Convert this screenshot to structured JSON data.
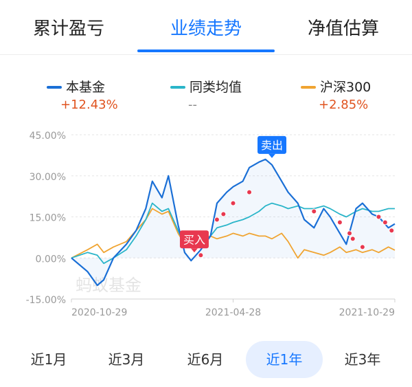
{
  "tabs": [
    {
      "label": "累计盈亏",
      "active": false
    },
    {
      "label": "业绩走势",
      "active": true
    },
    {
      "label": "净值估算",
      "active": false
    }
  ],
  "colors": {
    "accent": "#1677ff",
    "fund": "#1a6fd6",
    "peer": "#2ab5c9",
    "hs300": "#f0a431",
    "positive": "#e0531f",
    "marker_buy": "#e8384f",
    "marker_sell": "#1677ff",
    "dot": "#e8384f"
  },
  "legend": [
    {
      "name": "本基金",
      "value": "+12.43%"
    },
    {
      "name": "同类均值",
      "value": "--"
    },
    {
      "name": "沪深300",
      "value": "+2.85%"
    }
  ],
  "watermark": "蚂蚁基金",
  "ranges": [
    {
      "label": "近1月",
      "active": false
    },
    {
      "label": "近3月",
      "active": false
    },
    {
      "label": "近6月",
      "active": false
    },
    {
      "label": "近1年",
      "active": true
    },
    {
      "label": "近3年",
      "active": false
    }
  ],
  "chart_data": {
    "type": "line",
    "title": "",
    "xlabel": "",
    "ylabel": "",
    "ylim": [
      -15,
      45
    ],
    "yticks": [
      "45.00%",
      "30.00%",
      "15.00%",
      "0.00%",
      "-15.00%"
    ],
    "ytick_values": [
      45,
      30,
      15,
      0,
      -15
    ],
    "xticks": [
      {
        "label": "2020-10-29",
        "t": 0
      },
      {
        "label": "2021-04-28",
        "t": 0.5
      },
      {
        "label": "2021-10-29",
        "t": 1
      }
    ],
    "grid": true,
    "x": [
      0,
      0.05,
      0.08,
      0.1,
      0.13,
      0.17,
      0.2,
      0.23,
      0.25,
      0.28,
      0.3,
      0.33,
      0.35,
      0.37,
      0.4,
      0.43,
      0.45,
      0.48,
      0.5,
      0.53,
      0.55,
      0.58,
      0.6,
      0.62,
      0.65,
      0.67,
      0.7,
      0.72,
      0.75,
      0.78,
      0.8,
      0.83,
      0.85,
      0.88,
      0.9,
      0.93,
      0.95,
      0.98,
      1.0
    ],
    "series": [
      {
        "name": "本基金",
        "values": [
          0,
          -5,
          -10,
          -8,
          0,
          5,
          10,
          18,
          28,
          22,
          30,
          12,
          2,
          -1,
          3,
          8,
          20,
          24,
          26,
          28,
          33,
          35,
          36,
          34,
          28,
          24,
          20,
          14,
          11,
          18,
          15,
          9,
          5,
          18,
          20,
          16,
          15,
          11,
          12.43
        ]
      },
      {
        "name": "同类均值",
        "values": [
          0,
          2,
          1,
          -2,
          0,
          3,
          8,
          14,
          20,
          17,
          18,
          10,
          5,
          4,
          5,
          8,
          11,
          12,
          13,
          14,
          15,
          17,
          19,
          20,
          19,
          18,
          19,
          18,
          18,
          19,
          18,
          16,
          15,
          17,
          18,
          17,
          17,
          18,
          18
        ]
      },
      {
        "name": "沪深300",
        "values": [
          0,
          3,
          5,
          2,
          4,
          6,
          10,
          14,
          18,
          16,
          17,
          9,
          5,
          6,
          7,
          8,
          7,
          8,
          9,
          8,
          9,
          8,
          8,
          7,
          9,
          6,
          0,
          3,
          2,
          1,
          2,
          4,
          2,
          3,
          2,
          3,
          2,
          4,
          2.85
        ]
      }
    ],
    "annotations": [
      {
        "label": "买入",
        "x": 0.38,
        "y": 2
      },
      {
        "label": "卖出",
        "x": 0.62,
        "y": 36
      }
    ],
    "dots": [
      {
        "x": 0.4,
        "y": 1
      },
      {
        "x": 0.45,
        "y": 14
      },
      {
        "x": 0.47,
        "y": 16
      },
      {
        "x": 0.5,
        "y": 20
      },
      {
        "x": 0.55,
        "y": 24
      },
      {
        "x": 0.75,
        "y": 17
      },
      {
        "x": 0.83,
        "y": 13
      },
      {
        "x": 0.86,
        "y": 9
      },
      {
        "x": 0.87,
        "y": 7
      },
      {
        "x": 0.9,
        "y": 4
      },
      {
        "x": 0.95,
        "y": 15
      },
      {
        "x": 0.97,
        "y": 13
      },
      {
        "x": 0.99,
        "y": 10
      }
    ]
  }
}
